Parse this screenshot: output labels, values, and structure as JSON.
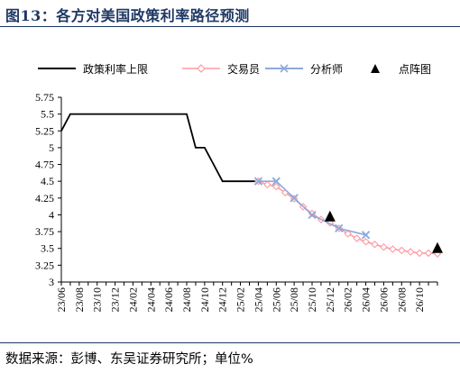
{
  "header": {
    "title": "图13：各方对美国政策利率路径预测",
    "source": "数据来源：彭博、东吴证券研究所；单位%"
  },
  "chart_data": {
    "type": "line",
    "title": "图13：各方对美国政策利率路径预测",
    "xlabel": "",
    "ylabel": "",
    "ylim": [
      3,
      5.75
    ],
    "yticks": [
      3,
      3.25,
      3.5,
      3.75,
      4,
      4.25,
      4.5,
      4.75,
      5,
      5.25,
      5.5,
      5.75
    ],
    "ytick_labels": [
      "3",
      "3.25",
      "3.5",
      "3.75",
      "4",
      "4.25",
      "4.5",
      "4.75",
      "5",
      "5.25",
      "5.5",
      "5.75"
    ],
    "xtick_labels": [
      "23/06",
      "23/08",
      "23/10",
      "23/12",
      "24/02",
      "24/04",
      "24/06",
      "24/08",
      "24/10",
      "24/12",
      "25/02",
      "25/04",
      "25/06",
      "25/08",
      "25/10",
      "25/12",
      "26/02",
      "26/04",
      "26/06",
      "26/08",
      "26/10"
    ],
    "x_start": "2023-06",
    "x_end": "2026-12",
    "legend": "top",
    "grid": false,
    "series": [
      {
        "name": "政策利率上限",
        "style": "line",
        "color": "#000000",
        "points": [
          [
            "2023-06",
            5.25
          ],
          [
            "2023-07",
            5.5
          ],
          [
            "2024-08",
            5.5
          ],
          [
            "2024-09",
            5.0
          ],
          [
            "2024-10",
            5.0
          ],
          [
            "2024-11",
            4.75
          ],
          [
            "2024-12",
            4.5
          ],
          [
            "2025-04",
            4.5
          ]
        ]
      },
      {
        "name": "交易员",
        "style": "line-diamond",
        "color": "#ff9aa2",
        "points": [
          [
            "2025-04",
            4.5
          ],
          [
            "2025-05",
            4.45
          ],
          [
            "2025-06",
            4.42
          ],
          [
            "2025-07",
            4.33
          ],
          [
            "2025-08",
            4.24
          ],
          [
            "2025-09",
            4.12
          ],
          [
            "2025-10",
            4.02
          ],
          [
            "2025-11",
            3.93
          ],
          [
            "2025-12",
            3.88
          ],
          [
            "2026-01",
            3.8
          ],
          [
            "2026-02",
            3.72
          ],
          [
            "2026-03",
            3.65
          ],
          [
            "2026-04",
            3.6
          ],
          [
            "2026-05",
            3.56
          ],
          [
            "2026-06",
            3.52
          ],
          [
            "2026-07",
            3.49
          ],
          [
            "2026-08",
            3.47
          ],
          [
            "2026-09",
            3.45
          ],
          [
            "2026-10",
            3.43
          ],
          [
            "2026-11",
            3.43
          ],
          [
            "2026-12",
            3.42
          ]
        ]
      },
      {
        "name": "分析师",
        "style": "line-x",
        "color": "#8ea9db",
        "points": [
          [
            "2025-04",
            4.5
          ],
          [
            "2025-06",
            4.5
          ],
          [
            "2025-08",
            4.25
          ],
          [
            "2025-10",
            4.0
          ],
          [
            "2026-01",
            3.8
          ],
          [
            "2026-04",
            3.7
          ]
        ]
      },
      {
        "name": "点阵图",
        "style": "triangle",
        "color": "#000000",
        "points": [
          [
            "2025-12",
            3.97
          ],
          [
            "2026-12",
            3.5
          ]
        ]
      }
    ]
  }
}
